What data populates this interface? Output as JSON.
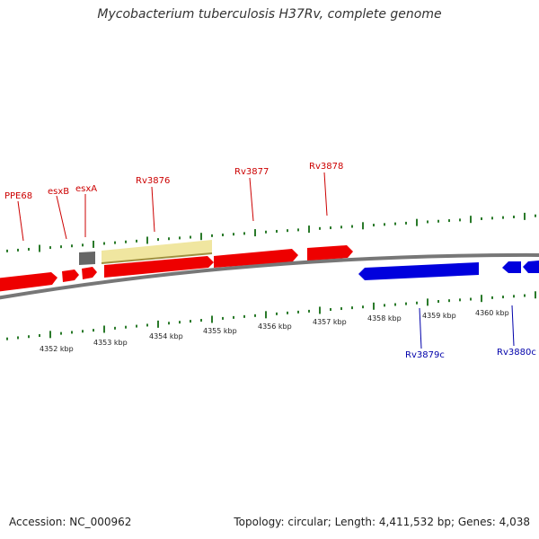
{
  "title": "Mycobacterium tuberculosis H37Rv, complete genome",
  "footer": {
    "accession_label": "Accession: NC_000962",
    "summary_label": "Topology: circular; Length: 4,411,532 bp; Genes: 4,038"
  },
  "colors": {
    "forward_gene": "#ee0000",
    "reverse_gene": "#0000dd",
    "highlight_gene": "#f0e6a0",
    "gray_feature": "#666666",
    "backbone": "#888888",
    "tick": "#2a7a2a",
    "forward_label": "#cc0000",
    "reverse_label": "#0000aa"
  },
  "kbp_labels": [
    "4352 kbp",
    "4353 kbp",
    "4354 kbp",
    "4355 kbp",
    "4356 kbp",
    "4357 kbp",
    "4358 kbp",
    "4359 kbp",
    "4360 kbp"
  ],
  "gene_labels": {
    "ppe68": "PPE68",
    "esxb": "esxB",
    "esxa": "esxA",
    "rv3876": "Rv3876",
    "rv3877": "Rv3877",
    "rv3878": "Rv3878",
    "rv3879c": "Rv3879c",
    "rv3880c": "Rv3880c"
  }
}
